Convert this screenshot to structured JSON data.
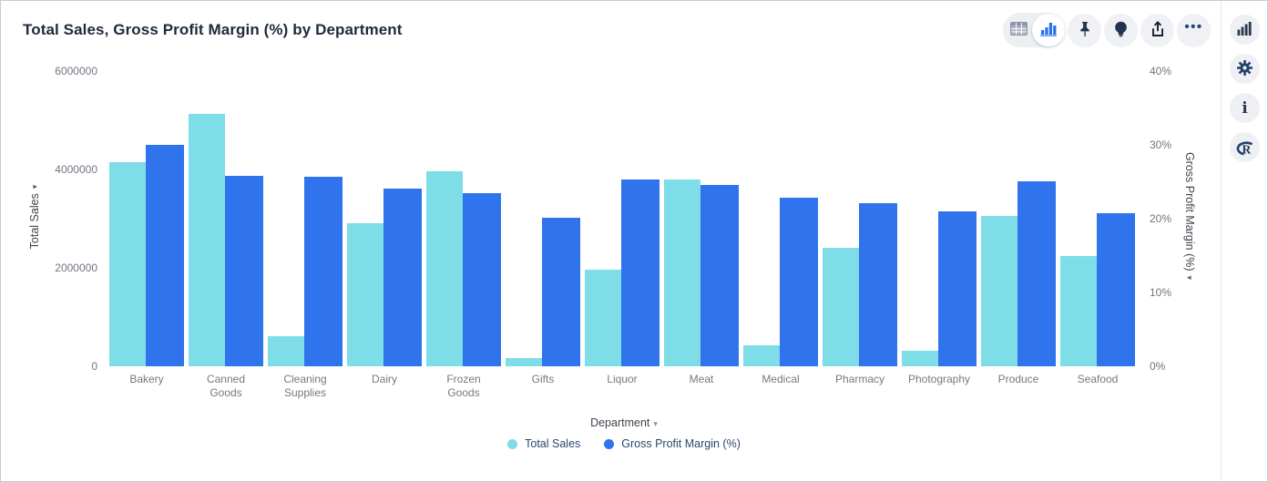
{
  "header": {
    "title": "Total Sales, Gross Profit Margin (%) by Department",
    "toolbar": {
      "more_glyph": "•••"
    }
  },
  "rail": {
    "info_glyph": "i",
    "r_logyph": "R"
  },
  "xaxis": {
    "label": "Department",
    "caret": "▾"
  },
  "axis_caret": "▾",
  "chart_data": {
    "type": "bar",
    "title": "Total Sales, Gross Profit Margin (%) by Department",
    "categories": [
      "Bakery",
      "Canned Goods",
      "Cleaning Supplies",
      "Dairy",
      "Frozen Goods",
      "Gifts",
      "Liquor",
      "Meat",
      "Medical",
      "Pharmacy",
      "Photography",
      "Produce",
      "Seafood"
    ],
    "series": [
      {
        "name": "Total Sales",
        "axis": "left",
        "color": "#7EDDE6",
        "values": [
          4140000,
          5130000,
          620000,
          2900000,
          3960000,
          170000,
          1960000,
          3800000,
          430000,
          2400000,
          320000,
          3050000,
          2250000
        ]
      },
      {
        "name": "Gross Profit Margin (%)",
        "axis": "right",
        "color": "#2F74EC",
        "values": [
          30.0,
          25.8,
          25.7,
          24.1,
          23.4,
          20.1,
          25.3,
          24.6,
          22.8,
          22.1,
          21.0,
          25.1,
          20.8
        ]
      }
    ],
    "xlabel": "Department",
    "left_axis": {
      "label": "Total Sales",
      "tick_labels": [
        "0",
        "2000000",
        "4000000",
        "6000000"
      ],
      "tick_values": [
        0,
        2000000,
        4000000,
        6000000
      ],
      "max": 6000000
    },
    "right_axis": {
      "label": "Gross Profit Margin (%)",
      "tick_labels": [
        "0%",
        "10%",
        "20%",
        "30%",
        "40%"
      ],
      "tick_values": [
        0,
        10,
        20,
        30,
        40
      ],
      "max": 40
    },
    "grid": false,
    "legend_position": "bottom"
  }
}
